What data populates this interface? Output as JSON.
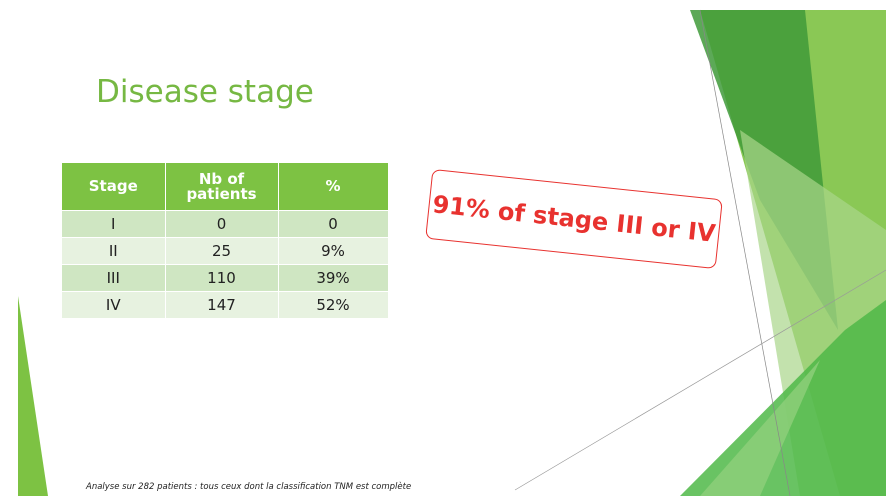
{
  "slide": {
    "title": "Disease stage",
    "table": {
      "header": [
        "Stage",
        "Nb of patients",
        "%"
      ],
      "rows": [
        [
          "I",
          "0",
          "0"
        ],
        [
          "II",
          "25",
          "9%"
        ],
        [
          "III",
          "110",
          "39%"
        ],
        [
          "IV",
          "147",
          "52%"
        ]
      ]
    },
    "callout": "91% of stage III or IV",
    "footnote": "Analyse sur 282 patients : tous ceux dont la classification TNM est complète"
  }
}
